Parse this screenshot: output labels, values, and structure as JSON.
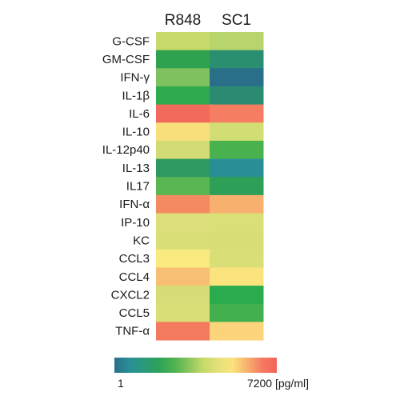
{
  "chart_data": {
    "type": "heatmap",
    "columns": [
      "R848",
      "SC1"
    ],
    "rows": [
      "G-CSF",
      "GM-CSF",
      "IFN-γ",
      "IL-1β",
      "IL-6",
      "IL-10",
      "IL-12p40",
      "IL-13",
      "IL17",
      "IFN-α",
      "IP-10",
      "KC",
      "CCL3",
      "CCL4",
      "CXCL2",
      "CCL5",
      "TNF-α"
    ],
    "cell_colors": [
      [
        "#c6d96a",
        "#b8d46c"
      ],
      [
        "#2fa250",
        "#2a8f70"
      ],
      [
        "#7fc15e",
        "#2a6f8a"
      ],
      [
        "#2faa4e",
        "#2b8a72"
      ],
      [
        "#f26a5b",
        "#f57d62"
      ],
      [
        "#f8df7c",
        "#d2de74"
      ],
      [
        "#d3dc74",
        "#49b24f"
      ],
      [
        "#2e9a61",
        "#2a8e96"
      ],
      [
        "#5ab553",
        "#2d9f56"
      ],
      [
        "#f48a60",
        "#f8b06e"
      ],
      [
        "#dddf7a",
        "#dadf77"
      ],
      [
        "#d9de76",
        "#d7de76"
      ],
      [
        "#faeb80",
        "#d9de76"
      ],
      [
        "#f7bf74",
        "#fbe37e"
      ],
      [
        "#d7dd76",
        "#2aac4e"
      ],
      [
        "#d9de76",
        "#42b04f"
      ],
      [
        "#f37a5e",
        "#fcd47b"
      ]
    ],
    "colorbar": {
      "stops": [
        "#2a6f8a",
        "#2a8e96",
        "#2a9a7c",
        "#2ea25a",
        "#4ab24f",
        "#86c45c",
        "#c6d96a",
        "#e4e17a",
        "#fae27e",
        "#f8b06e",
        "#f57a62",
        "#f2645a"
      ],
      "min_label": "1",
      "max_label": "7200 [pg/ml]"
    }
  }
}
